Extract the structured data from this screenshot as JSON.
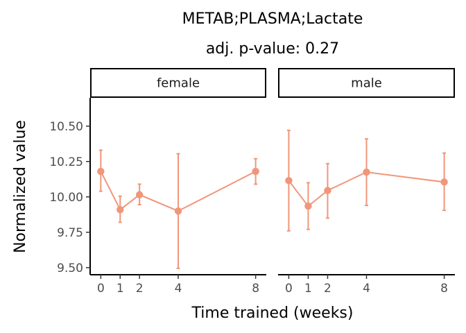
{
  "chart_data": {
    "type": "line",
    "title": "METAB;PLASMA;Lactate",
    "subtitle": "adj. p-value: 0.27",
    "xlabel": "Time trained (weeks)",
    "ylabel": "Normalized value",
    "x_ticks": [
      0,
      1,
      2,
      4,
      8
    ],
    "y_ticks": [
      9.5,
      9.75,
      10.0,
      10.25,
      10.5
    ],
    "y_tick_labels": [
      "9.50",
      "9.75",
      "10.00",
      "10.25",
      "10.50"
    ],
    "xlim": [
      -0.55,
      8.55
    ],
    "ylim": [
      9.45,
      10.7
    ],
    "color": "#F0967A",
    "facets": [
      {
        "label": "female",
        "x": [
          0,
          1,
          2,
          4,
          8
        ],
        "y": [
          10.18,
          9.91,
          10.015,
          9.9,
          10.18
        ],
        "ymin": [
          10.04,
          9.82,
          9.945,
          9.495,
          10.09
        ],
        "ymax": [
          10.33,
          10.005,
          10.09,
          10.305,
          10.27
        ]
      },
      {
        "label": "male",
        "x": [
          0,
          1,
          2,
          4,
          8
        ],
        "y": [
          10.115,
          9.935,
          10.045,
          10.175,
          10.105
        ],
        "ymin": [
          9.76,
          9.77,
          9.85,
          9.94,
          9.905
        ],
        "ymax": [
          10.47,
          10.1,
          10.235,
          10.41,
          10.31
        ]
      }
    ]
  }
}
